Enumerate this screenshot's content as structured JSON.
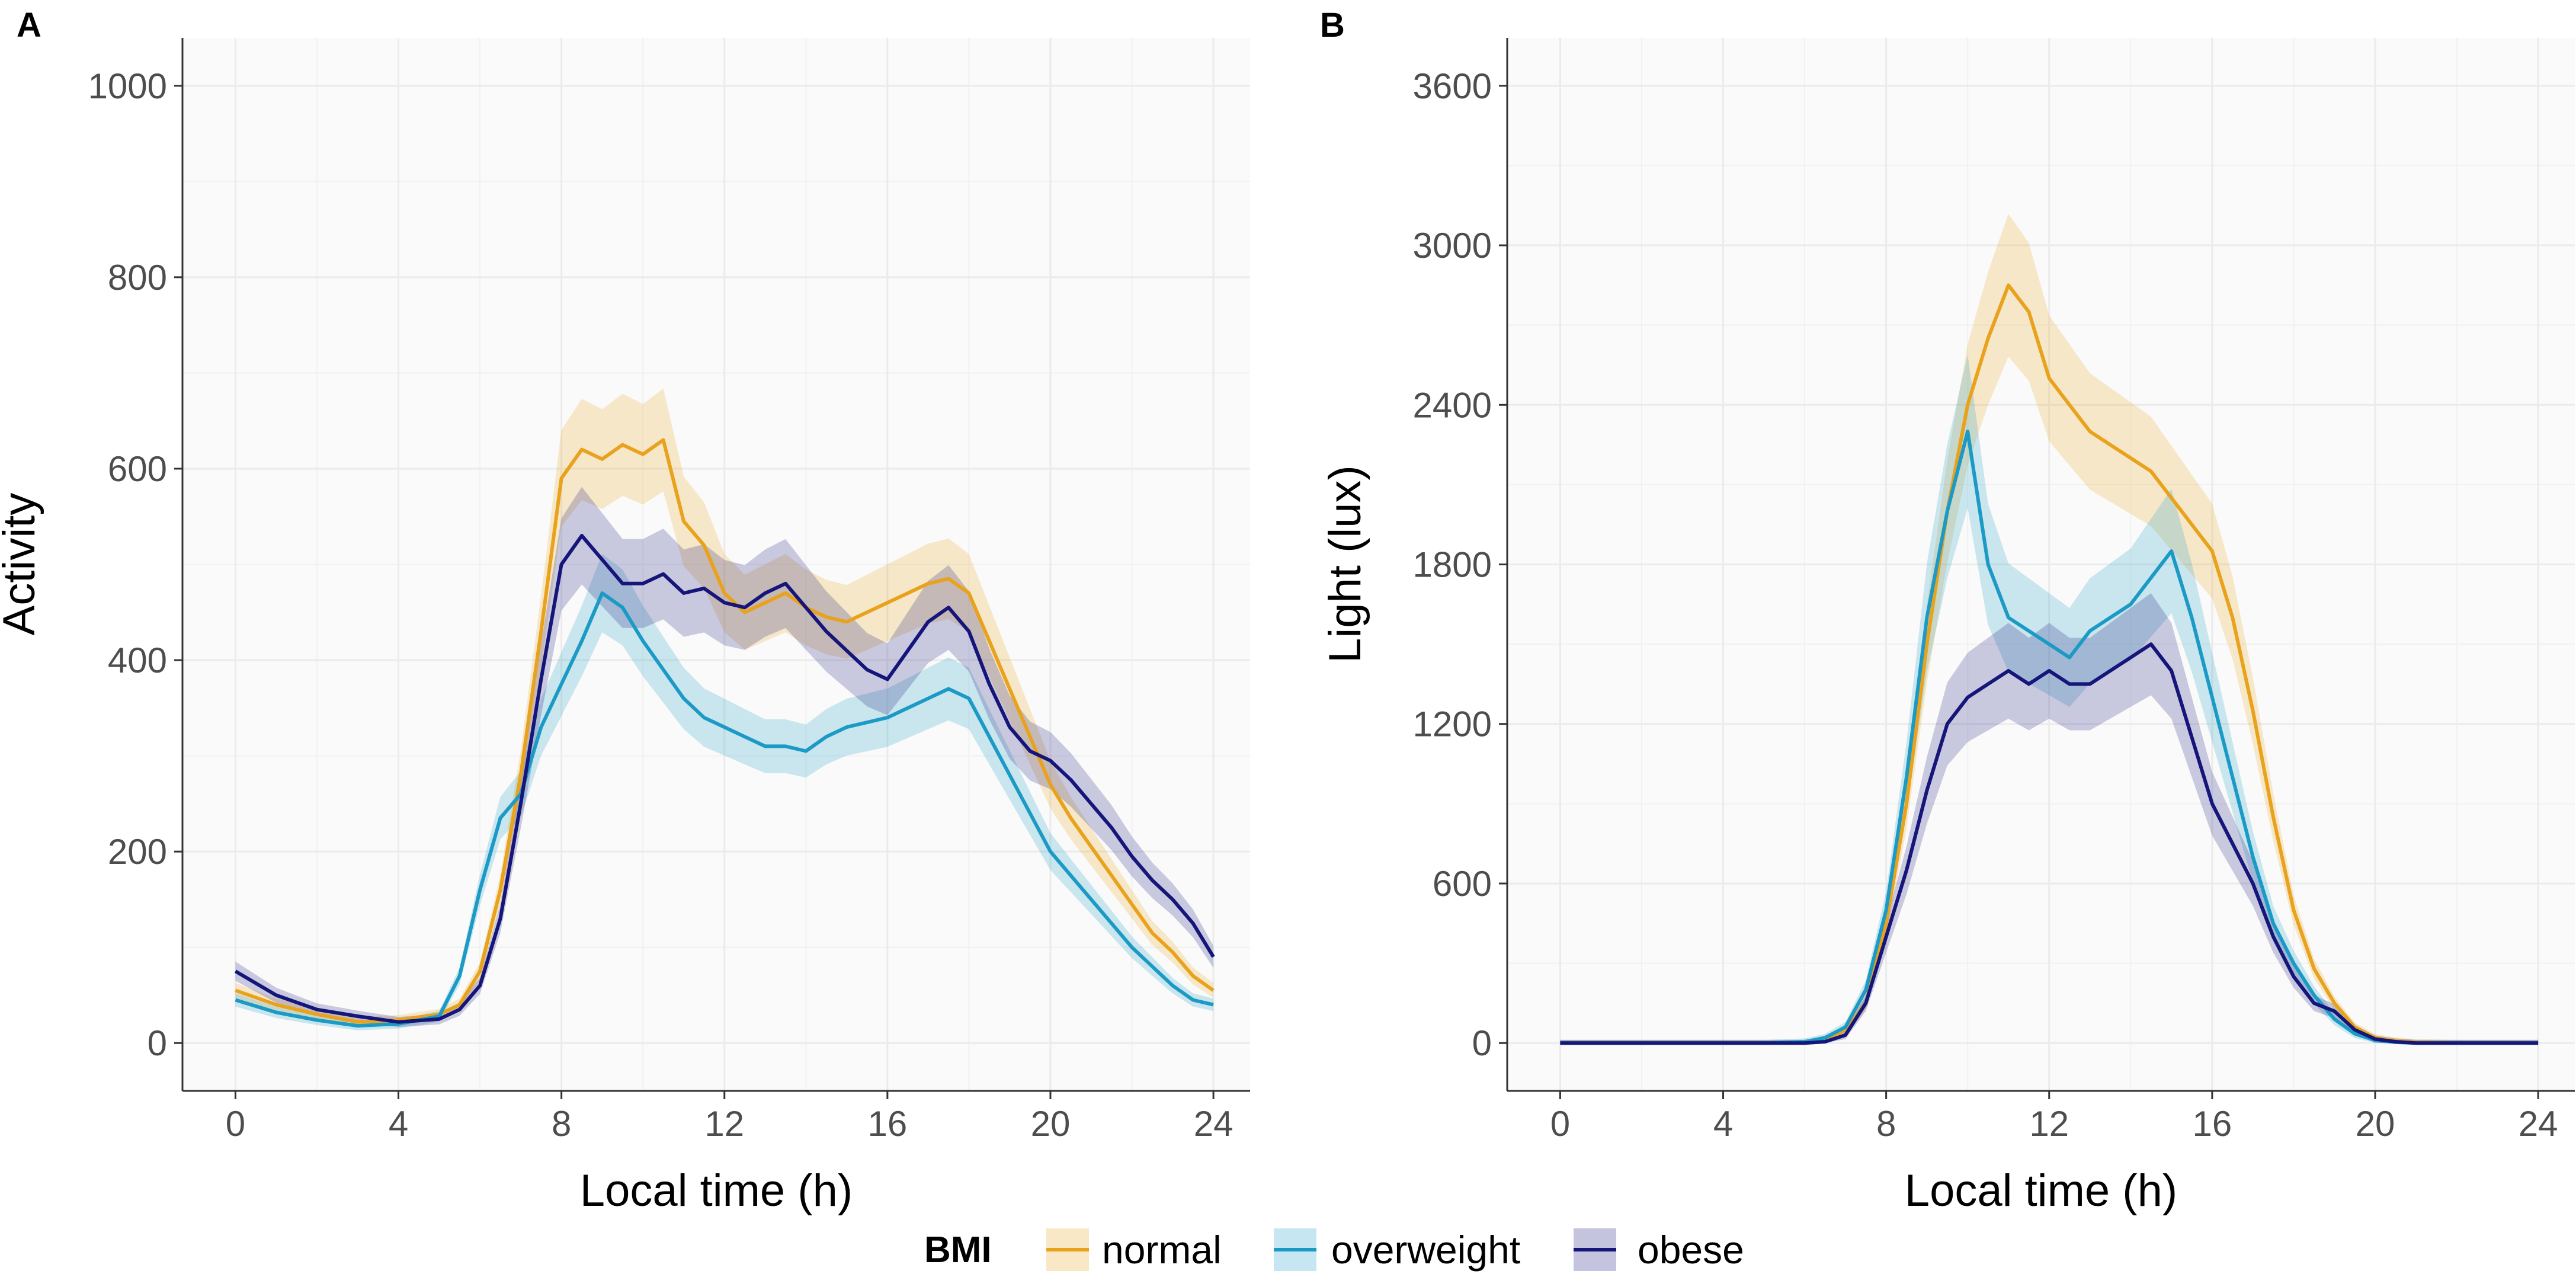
{
  "legend": {
    "title": "BMI",
    "colors": {
      "normal": "#E8A21C",
      "overweight": "#1B9AC6",
      "obese": "#15157A"
    }
  },
  "chart_data": [
    {
      "panel_label": "A",
      "type": "line",
      "xlabel": "Local time (h)",
      "ylabel": "Activity",
      "xlim": [
        -1.3,
        24.9
      ],
      "ylim": [
        -50,
        1050
      ],
      "xticks": [
        0,
        4,
        8,
        12,
        16,
        20,
        24
      ],
      "yticks": [
        0,
        200,
        400,
        600,
        800,
        1000
      ],
      "band_halfwidth": {
        "normal": 0.08,
        "overweight": 0.08,
        "obese": 0.09
      },
      "x": [
        0,
        1,
        2,
        3,
        4,
        5,
        5.5,
        6,
        6.5,
        7,
        7.5,
        8,
        8.5,
        9,
        9.5,
        10,
        10.5,
        11,
        11.5,
        12,
        12.5,
        13,
        13.5,
        14,
        14.5,
        15,
        15.5,
        16,
        16.5,
        17,
        17.5,
        18,
        18.5,
        19,
        19.5,
        20,
        20.5,
        21,
        21.5,
        22,
        22.5,
        23,
        23.5,
        24
      ],
      "series": [
        {
          "name": "normal",
          "values": [
            55,
            40,
            30,
            22,
            24,
            30,
            40,
            75,
            160,
            280,
            430,
            590,
            620,
            610,
            625,
            615,
            630,
            545,
            520,
            470,
            450,
            460,
            470,
            455,
            445,
            440,
            450,
            460,
            470,
            480,
            485,
            470,
            420,
            370,
            320,
            270,
            235,
            205,
            175,
            145,
            115,
            95,
            70,
            55
          ]
        },
        {
          "name": "overweight",
          "values": [
            45,
            32,
            24,
            18,
            20,
            28,
            70,
            160,
            235,
            260,
            330,
            375,
            420,
            470,
            455,
            420,
            390,
            360,
            340,
            330,
            320,
            310,
            310,
            305,
            320,
            330,
            335,
            340,
            350,
            360,
            370,
            360,
            320,
            280,
            240,
            200,
            175,
            150,
            125,
            100,
            80,
            60,
            45,
            40
          ]
        },
        {
          "name": "obese",
          "values": [
            75,
            50,
            35,
            28,
            22,
            25,
            35,
            60,
            130,
            250,
            380,
            500,
            530,
            505,
            480,
            480,
            490,
            470,
            475,
            460,
            455,
            470,
            480,
            455,
            430,
            410,
            390,
            380,
            410,
            440,
            455,
            430,
            375,
            330,
            305,
            295,
            275,
            250,
            225,
            195,
            170,
            150,
            125,
            90
          ]
        }
      ]
    },
    {
      "panel_label": "B",
      "type": "line",
      "xlabel": "Local time (h)",
      "ylabel": "Light (lux)",
      "xlim": [
        -1.3,
        24.9
      ],
      "ylim": [
        -180,
        3780
      ],
      "xticks": [
        0,
        4,
        8,
        12,
        16,
        20,
        24
      ],
      "yticks": [
        0,
        600,
        1200,
        1800,
        2400,
        3000,
        3600
      ],
      "band_halfwidth": {
        "normal": 0.09,
        "overweight": 0.12,
        "obese": 0.12
      },
      "x": [
        0,
        1,
        2,
        3,
        4,
        5,
        6,
        6.5,
        7,
        7.5,
        8,
        8.5,
        9,
        9.5,
        10,
        10.5,
        11,
        11.5,
        12,
        12.5,
        13,
        13.5,
        14,
        14.5,
        15,
        15.5,
        16,
        16.5,
        17,
        17.5,
        18,
        18.5,
        19,
        19.5,
        20,
        20.5,
        21,
        22,
        23,
        24
      ],
      "series": [
        {
          "name": "normal",
          "values": [
            0,
            0,
            0,
            0,
            0,
            0,
            0,
            10,
            50,
            150,
            450,
            900,
            1500,
            2000,
            2400,
            2650,
            2850,
            2750,
            2500,
            2400,
            2300,
            2250,
            2200,
            2150,
            2050,
            1950,
            1850,
            1600,
            1250,
            850,
            500,
            280,
            150,
            60,
            20,
            8,
            3,
            0,
            0,
            0
          ]
        },
        {
          "name": "overweight",
          "values": [
            0,
            0,
            0,
            0,
            0,
            0,
            5,
            20,
            60,
            200,
            500,
            1000,
            1600,
            2000,
            2300,
            1800,
            1600,
            1550,
            1500,
            1450,
            1550,
            1600,
            1650,
            1750,
            1850,
            1600,
            1300,
            1000,
            700,
            450,
            300,
            180,
            90,
            35,
            10,
            3,
            0,
            0,
            0,
            0
          ]
        },
        {
          "name": "obese",
          "values": [
            0,
            0,
            0,
            0,
            0,
            0,
            0,
            5,
            30,
            150,
            400,
            650,
            950,
            1200,
            1300,
            1350,
            1400,
            1350,
            1400,
            1350,
            1350,
            1400,
            1450,
            1500,
            1400,
            1150,
            900,
            750,
            600,
            400,
            250,
            150,
            120,
            50,
            15,
            5,
            0,
            0,
            0,
            0
          ]
        }
      ]
    }
  ]
}
